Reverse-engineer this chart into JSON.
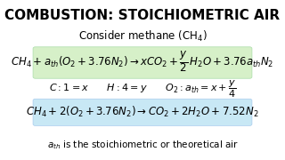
{
  "title": "COMBUSTION: STOICHIOMETRIC AIR",
  "subtitle": "Consider methane (CH$_4$)",
  "green_box_eq": "$CH_4 + a_{th}\\left(O_2 + 3.76N_2\\right) \\rightarrow xCO_2 + \\dfrac{y}{2}\\,H_2O + 3.76a_{th}N_2$",
  "balance_line": "$C: 1 = x \\qquad H: 4 = y \\qquad O_2: a_{th} = x + \\dfrac{y}{4}$",
  "blue_box_eq": "$CH_4 + 2\\left(O_2 + 3.76N_2\\right) \\rightarrow CO_2 + 2H_2O + 7.52N_2$",
  "footnote": "$a_{th}$ is the stoichiometric or theoretical air",
  "bg_color": "#ffffff",
  "title_color": "#000000",
  "green_box_color": "#d6f0c8",
  "blue_box_color": "#c8e8f5",
  "text_color": "#000000",
  "title_fontsize": 11,
  "eq_fontsize": 8.5,
  "balance_fontsize": 8.0,
  "footnote_fontsize": 7.5
}
